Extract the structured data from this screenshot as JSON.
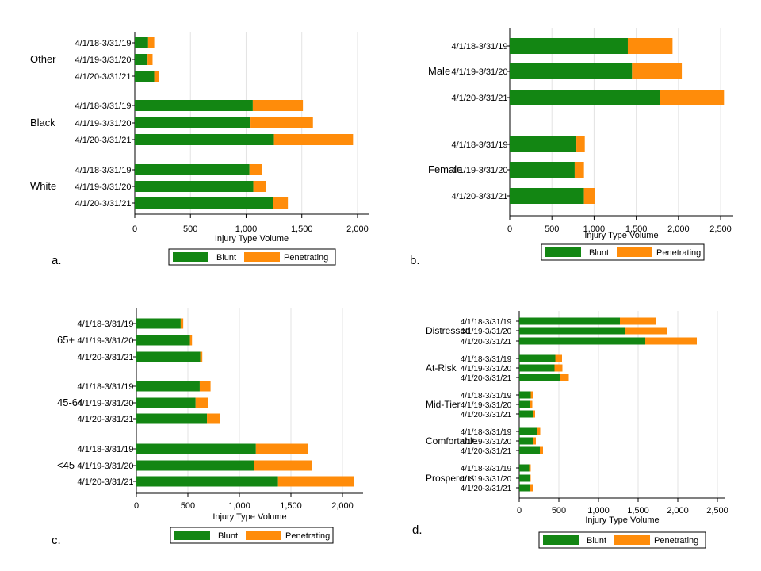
{
  "colors": {
    "blunt": "#138613",
    "penetrating": "#ff8c0a",
    "grid": "#e3e3e3",
    "axis": "#000000"
  },
  "legend": {
    "blunt": "Blunt",
    "penetrating": "Penetrating"
  },
  "chart_data": [
    {
      "id": "a",
      "panel_label": "a.",
      "type": "bar",
      "orientation": "horizontal",
      "stacked": true,
      "xlabel": "Injury Type Volume",
      "xlim": [
        0,
        2100
      ],
      "ticks": [
        0,
        500,
        1000,
        1500,
        2000
      ],
      "tick_labels": [
        "0",
        "500",
        "1,000",
        "1,500",
        "2,000"
      ],
      "groups": [
        {
          "name": "Other",
          "categories": [
            "4/1/18-3/31/19",
            "4/1/19-3/31/20",
            "4/1/20-3/31/21"
          ],
          "blunt": [
            120,
            115,
            175
          ],
          "penetrating": [
            55,
            45,
            45
          ]
        },
        {
          "name": "Black",
          "categories": [
            "4/1/18-3/31/19",
            "4/1/19-3/31/20",
            "4/1/20-3/31/21"
          ],
          "blunt": [
            1060,
            1040,
            1250
          ],
          "penetrating": [
            450,
            560,
            710
          ]
        },
        {
          "name": "White",
          "categories": [
            "4/1/18-3/31/19",
            "4/1/19-3/31/20",
            "4/1/20-3/31/21"
          ],
          "blunt": [
            1030,
            1065,
            1245
          ],
          "penetrating": [
            115,
            110,
            130
          ]
        }
      ]
    },
    {
      "id": "b",
      "panel_label": "b.",
      "type": "bar",
      "orientation": "horizontal",
      "stacked": true,
      "xlabel": "Injury Type Volume",
      "xlim": [
        0,
        2650
      ],
      "ticks": [
        0,
        500,
        1000,
        1500,
        2000,
        2500
      ],
      "tick_labels": [
        "0",
        "500",
        "1,000",
        "1,500",
        "2,000",
        "2,500"
      ],
      "groups": [
        {
          "name": "Male",
          "categories": [
            "4/1/18-3/31/19",
            "4/1/19-3/31/20",
            "4/1/20-3/31/21"
          ],
          "blunt": [
            1400,
            1450,
            1780
          ],
          "penetrating": [
            530,
            590,
            760
          ]
        },
        {
          "name": "Female",
          "categories": [
            "4/1/18-3/31/19",
            "4/1/19-3/31/20",
            "4/1/20-3/31/21"
          ],
          "blunt": [
            790,
            770,
            880
          ],
          "penetrating": [
            100,
            110,
            130
          ]
        }
      ]
    },
    {
      "id": "c",
      "panel_label": "c.",
      "type": "bar",
      "orientation": "horizontal",
      "stacked": true,
      "xlabel": "Injury Type Volume",
      "xlim": [
        0,
        2200
      ],
      "ticks": [
        0,
        500,
        1000,
        1500,
        2000
      ],
      "tick_labels": [
        "0",
        "500",
        "1,000",
        "1,500",
        "2,000"
      ],
      "groups": [
        {
          "name": "65+",
          "categories": [
            "4/1/18-3/31/19",
            "4/1/19-3/31/20",
            "4/1/20-3/31/21"
          ],
          "blunt": [
            430,
            520,
            620
          ],
          "penetrating": [
            25,
            20,
            20
          ]
        },
        {
          "name": "45-64",
          "categories": [
            "4/1/18-3/31/19",
            "4/1/19-3/31/20",
            "4/1/20-3/31/21"
          ],
          "blunt": [
            615,
            575,
            685
          ],
          "penetrating": [
            105,
            120,
            125
          ]
        },
        {
          "name": "<45",
          "categories": [
            "4/1/18-3/31/19",
            "4/1/19-3/31/20",
            "4/1/20-3/31/21"
          ],
          "blunt": [
            1160,
            1145,
            1375
          ],
          "penetrating": [
            505,
            560,
            740
          ]
        }
      ]
    },
    {
      "id": "d",
      "panel_label": "d.",
      "type": "bar",
      "orientation": "horizontal",
      "stacked": true,
      "xlabel": "Injury Type Volume",
      "xlim": [
        0,
        2600
      ],
      "ticks": [
        0,
        500,
        1000,
        1500,
        2000,
        2500
      ],
      "tick_labels": [
        "0",
        "500",
        "1,000",
        "1,500",
        "2,000",
        "2,500"
      ],
      "groups": [
        {
          "name": "Distressed",
          "categories": [
            "4/1/18-3/31/19",
            "4/1/19-3/31/20",
            "4/1/20-3/31/21"
          ],
          "blunt": [
            1270,
            1340,
            1590
          ],
          "penetrating": [
            450,
            520,
            650
          ]
        },
        {
          "name": "At-Risk",
          "categories": [
            "4/1/18-3/31/19",
            "4/1/19-3/31/20",
            "4/1/20-3/31/21"
          ],
          "blunt": [
            455,
            445,
            520
          ],
          "penetrating": [
            85,
            100,
            105
          ]
        },
        {
          "name": "Mid-Tier",
          "categories": [
            "4/1/18-3/31/19",
            "4/1/19-3/31/20",
            "4/1/20-3/31/21"
          ],
          "blunt": [
            145,
            140,
            170
          ],
          "penetrating": [
            30,
            25,
            30
          ]
        },
        {
          "name": "Comfortable",
          "categories": [
            "4/1/18-3/31/19",
            "4/1/19-3/31/20",
            "4/1/20-3/31/21"
          ],
          "blunt": [
            230,
            180,
            260
          ],
          "penetrating": [
            35,
            30,
            40
          ]
        },
        {
          "name": "Prosperous",
          "categories": [
            "4/1/18-3/31/19",
            "4/1/19-3/31/20",
            "4/1/20-3/31/21"
          ],
          "blunt": [
            125,
            130,
            135
          ],
          "penetrating": [
            20,
            15,
            35
          ]
        }
      ]
    }
  ]
}
